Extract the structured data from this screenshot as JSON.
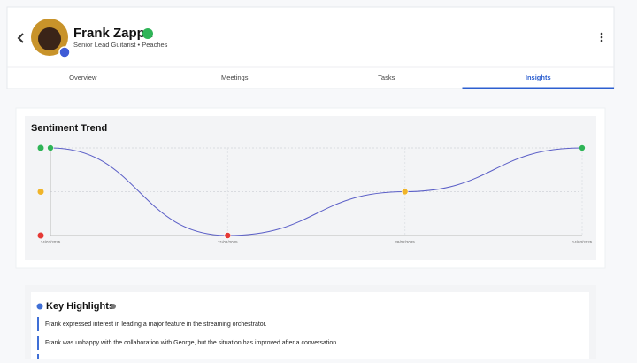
{
  "header": {
    "name": "Frank Zappa",
    "subtitle": "Senior Lead Guitarist • Peaches"
  },
  "tabs": [
    "Overview",
    "Meetings",
    "Tasks",
    "Insights"
  ],
  "active_tab": 3,
  "chart_data": {
    "type": "line",
    "title": "Sentiment Trend",
    "categories": [
      "14/02/2025",
      "21/02/2025",
      "28/02/2025",
      "14/03/2025"
    ],
    "series": [
      {
        "color": "#5b5fc7",
        "values": [
          1,
          -1,
          0,
          1
        ]
      }
    ],
    "ylim": [
      -1,
      1
    ],
    "yticks": [
      -1,
      0,
      1
    ],
    "tick_colors": [
      "#e53935",
      "#f0b429",
      "#2fb457"
    ],
    "grid": true
  },
  "highlights": {
    "title": "Key Highlights",
    "items": [
      "Frank expressed interest in leading a major feature in the streaming orchestrator.",
      "Frank was unhappy with the collaboration with George, but the situation has improved after a conversation."
    ]
  }
}
